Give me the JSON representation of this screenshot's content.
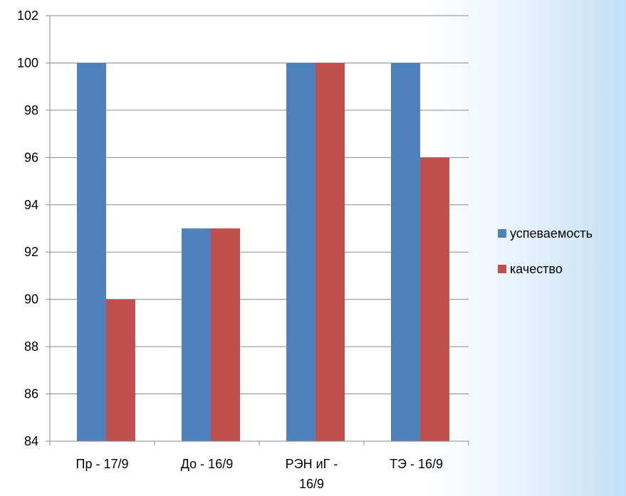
{
  "chart_data": {
    "type": "bar",
    "title": "",
    "xlabel": "",
    "ylabel": "",
    "categories": [
      "Пр - 17/9",
      "До - 16/9",
      "РЭН иГ - 16/9",
      "ТЭ - 16/9"
    ],
    "category_lines": [
      [
        "Пр - 17/9"
      ],
      [
        "До - 16/9"
      ],
      [
        "РЭН иГ -",
        "16/9"
      ],
      [
        "ТЭ - 16/9"
      ]
    ],
    "series": [
      {
        "name": "успеваемость",
        "values": [
          100,
          93,
          100,
          100
        ],
        "color": "#4F81BD"
      },
      {
        "name": "качество",
        "values": [
          90,
          93,
          100,
          96
        ],
        "color": "#C0504D"
      }
    ],
    "ylim": [
      84,
      102
    ],
    "yticks": [
      84,
      86,
      88,
      90,
      92,
      94,
      96,
      98,
      100,
      102
    ],
    "grid": true,
    "legend": "right"
  }
}
